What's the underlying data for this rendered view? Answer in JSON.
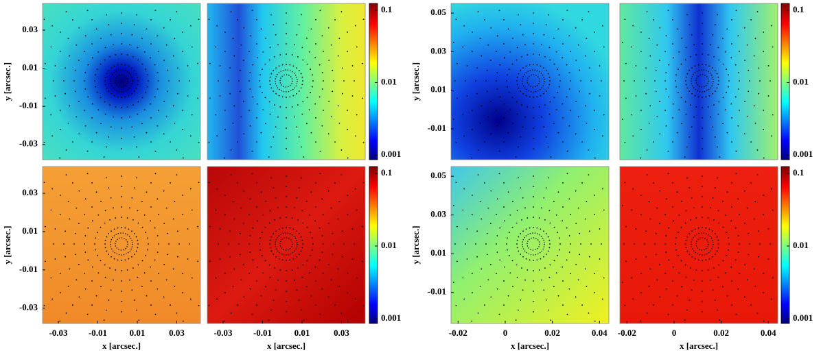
{
  "chart_data": [
    {
      "type": "heatmap",
      "xlim": [
        -0.038,
        0.042
      ],
      "ylim": [
        -0.038,
        0.044
      ],
      "yticks": [
        -0.03,
        -0.01,
        0.01,
        0.03
      ],
      "y_label": "y [arcsec.]"
    },
    {
      "type": "heatmap",
      "xlim": [
        -0.038,
        0.042
      ],
      "ylim": [
        -0.038,
        0.044
      ]
    },
    {
      "type": "heatmap",
      "xlim": [
        -0.023,
        0.044
      ],
      "ylim": [
        -0.026,
        0.055
      ],
      "yticks": [
        -0.01,
        0.01,
        0.03,
        0.05
      ],
      "y_label": "y [arcsec.]"
    },
    {
      "type": "heatmap",
      "xlim": [
        -0.023,
        0.044
      ],
      "ylim": [
        -0.026,
        0.055
      ]
    },
    {
      "type": "heatmap",
      "xlim": [
        -0.038,
        0.042
      ],
      "ylim": [
        -0.038,
        0.044
      ],
      "xticks": [
        -0.03,
        -0.01,
        0.01,
        0.03
      ],
      "yticks": [
        -0.03,
        -0.01,
        0.01,
        0.03
      ],
      "x_label": "x [arcsec.]",
      "y_label": "y [arcsec.]"
    },
    {
      "type": "heatmap",
      "xlim": [
        -0.038,
        0.042
      ],
      "ylim": [
        -0.038,
        0.044
      ],
      "xticks": [
        -0.03,
        -0.01,
        0.01,
        0.03
      ],
      "x_label": "x [arcsec.]"
    },
    {
      "type": "heatmap",
      "xlim": [
        -0.023,
        0.044
      ],
      "ylim": [
        -0.026,
        0.055
      ],
      "xticks": [
        -0.02,
        0,
        0.02,
        0.04
      ],
      "yticks": [
        -0.01,
        0.01,
        0.03,
        0.05
      ],
      "x_label": "x [arcsec.]",
      "y_label": "y [arcsec.]"
    },
    {
      "type": "heatmap",
      "xlim": [
        -0.023,
        0.044
      ],
      "ylim": [
        -0.026,
        0.055
      ],
      "xticks": [
        -0.02,
        0,
        0.02,
        0.04
      ],
      "x_label": "x [arcsec.]"
    },
    {
      "type": "colorbar",
      "scale": "log",
      "zlim": [
        0.00086,
        0.124
      ],
      "zticks": [
        0.001,
        0.01,
        0.1
      ]
    },
    {
      "type": "colorbar",
      "scale": "log",
      "zlim": [
        0.00086,
        0.124
      ],
      "zticks": [
        0.001,
        0.01,
        0.1
      ]
    },
    {
      "type": "colorbar",
      "scale": "log",
      "zlim": [
        0.00086,
        0.124
      ],
      "zticks": [
        0.001,
        0.01,
        0.1
      ]
    },
    {
      "type": "colorbar",
      "scale": "log",
      "zlim": [
        0.00086,
        0.124
      ],
      "zticks": [
        0.001,
        0.01,
        0.1
      ]
    }
  ]
}
